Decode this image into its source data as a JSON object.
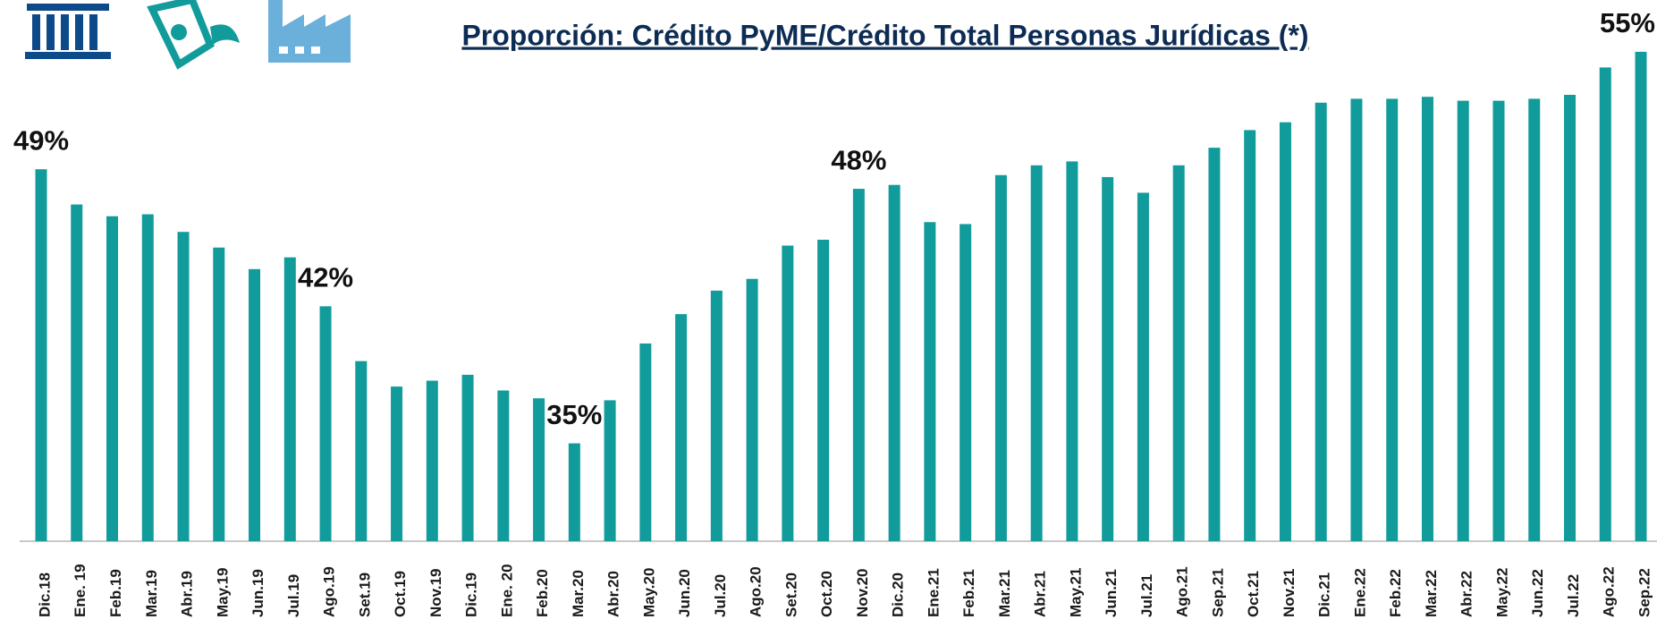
{
  "chart_data": {
    "type": "bar",
    "title": "Proporción: Crédito PyME/Crédito Total Personas Jurídicas (*)",
    "categories": [
      "Dic.18",
      "Ene. 19",
      "Feb.19",
      "Mar.19",
      "Abr.19",
      "May.19",
      "Jun.19",
      "Jul.19",
      "Ago.19",
      "Set.19",
      "Oct.19",
      "Nov.19",
      "Dic.19",
      "Ene. 20",
      "Feb.20",
      "Mar.20",
      "Abr.20",
      "May.20",
      "Jun.20",
      "Jul.20",
      "Ago.20",
      "Set.20",
      "Oct.20",
      "Nov.20",
      "Dic.20",
      "Ene.21",
      "Feb.21",
      "Mar.21",
      "Abr.21",
      "May.21",
      "Jun.21",
      "Jul.21",
      "Ago.21",
      "Sep.21",
      "Oct.21",
      "Nov.21",
      "Dic.21",
      "Ene.22",
      "Feb.22",
      "Mar.22",
      "Abr.22",
      "May.22",
      "Jun.22",
      "Jul.22",
      "Ago.22",
      "Sep.22"
    ],
    "values": [
      49,
      47.2,
      46.6,
      46.7,
      45.8,
      45.0,
      43.9,
      44.5,
      42,
      39.2,
      37.9,
      38.2,
      38.5,
      37.7,
      37.3,
      35,
      37.2,
      40.1,
      41.6,
      42.8,
      43.4,
      45.1,
      45.4,
      48,
      48.2,
      46.3,
      46.2,
      48.7,
      49.2,
      49.4,
      48.6,
      47.8,
      49.2,
      50.1,
      51.0,
      51.4,
      52.4,
      52.6,
      52.6,
      52.7,
      52.5,
      52.5,
      52.6,
      52.8,
      54.2,
      55
    ],
    "value_labels": [
      "49%",
      null,
      null,
      null,
      null,
      null,
      null,
      null,
      "42%",
      null,
      null,
      null,
      null,
      null,
      null,
      "35%",
      null,
      null,
      null,
      null,
      null,
      null,
      null,
      "48%",
      null,
      null,
      null,
      null,
      null,
      null,
      null,
      null,
      null,
      null,
      null,
      null,
      null,
      null,
      null,
      null,
      null,
      null,
      null,
      null,
      null,
      "55%"
    ],
    "color": "#129b9b",
    "ylim": [
      30,
      56
    ]
  }
}
